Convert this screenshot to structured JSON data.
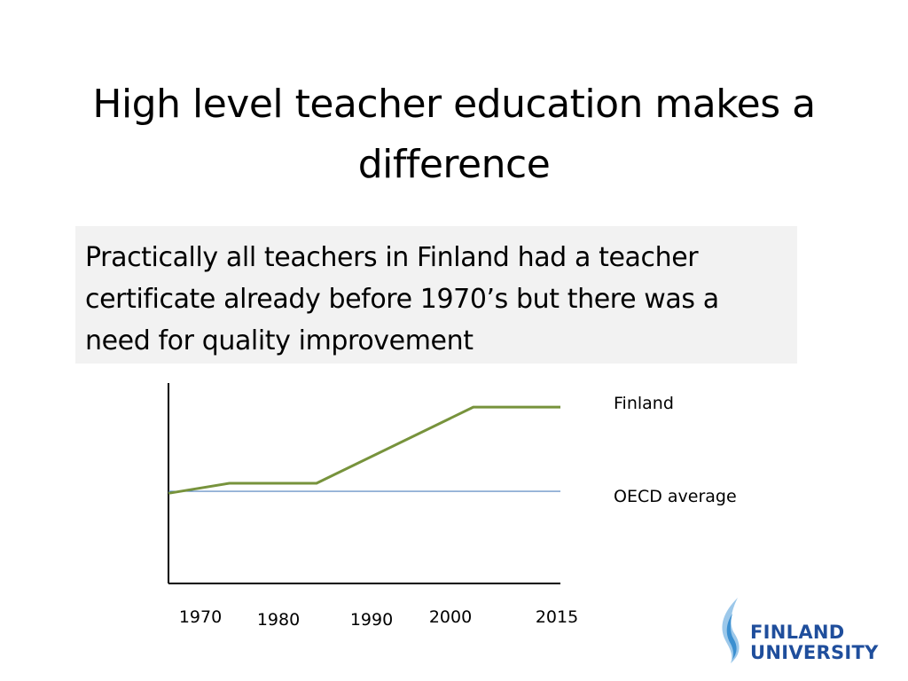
{
  "slide": {
    "title": "High level teacher education makes a difference",
    "callout": "Practically all teachers in Finland had a teacher certificate already before 1970’s but there was a need for quality improvement"
  },
  "chart_data": {
    "type": "line",
    "title": "",
    "xlabel": "",
    "ylabel": "",
    "x": [
      "1970",
      "1980",
      "1990",
      "2000",
      "2015"
    ],
    "series": [
      {
        "name": "Finland",
        "points": [
          [
            1970,
            0.45
          ],
          [
            1977,
            0.5
          ],
          [
            1987,
            0.5
          ],
          [
            2005,
            0.88
          ],
          [
            2015,
            0.88
          ]
        ],
        "color": "#77933c"
      },
      {
        "name": "OECD average",
        "points": [
          [
            1970,
            0.46
          ],
          [
            2015,
            0.46
          ]
        ],
        "color": "#4f81bd"
      }
    ],
    "x_range": [
      1970,
      2015
    ],
    "y_range": [
      0,
      1
    ],
    "grid": false,
    "legend": "right"
  },
  "logo": {
    "line1": "FINLAND",
    "line2": "UNIVERSITY",
    "color": "#1f4e9c"
  }
}
